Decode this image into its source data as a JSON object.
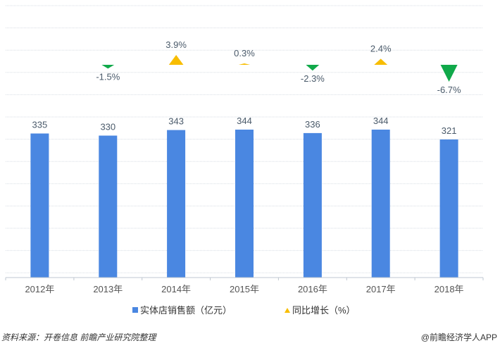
{
  "chart_data": {
    "type": "bar+marker",
    "categories": [
      "2012年",
      "2013年",
      "2014年",
      "2015年",
      "2016年",
      "2017年",
      "2018年"
    ],
    "series": [
      {
        "name": "实体店销售额（亿元）",
        "kind": "bar",
        "color": "#4a87e1",
        "values": [
          335,
          330,
          343,
          344,
          336,
          344,
          321
        ],
        "labels": [
          "335",
          "330",
          "343",
          "344",
          "336",
          "344",
          "321"
        ]
      },
      {
        "name": "同比增长（%）",
        "kind": "triangle-marker",
        "color_up": "#f8bd00",
        "color_down": "#10a94a",
        "values": [
          null,
          -1.5,
          3.9,
          0.3,
          -2.3,
          2.4,
          -6.7
        ],
        "labels": [
          "",
          "-1.5%",
          "3.9%",
          "0.3%",
          "-2.3%",
          "2.4%",
          "-6.7%"
        ]
      }
    ],
    "legend_position": "bottom-center",
    "grid": true
  },
  "footer": {
    "source": "资料来源：开卷信息  前瞻产业研究院整理",
    "brand": "@前瞻经济学人APP"
  },
  "colors": {
    "grid": "#d7dde4",
    "axis_text": "#555555",
    "label_text": "#4a5a6a"
  }
}
